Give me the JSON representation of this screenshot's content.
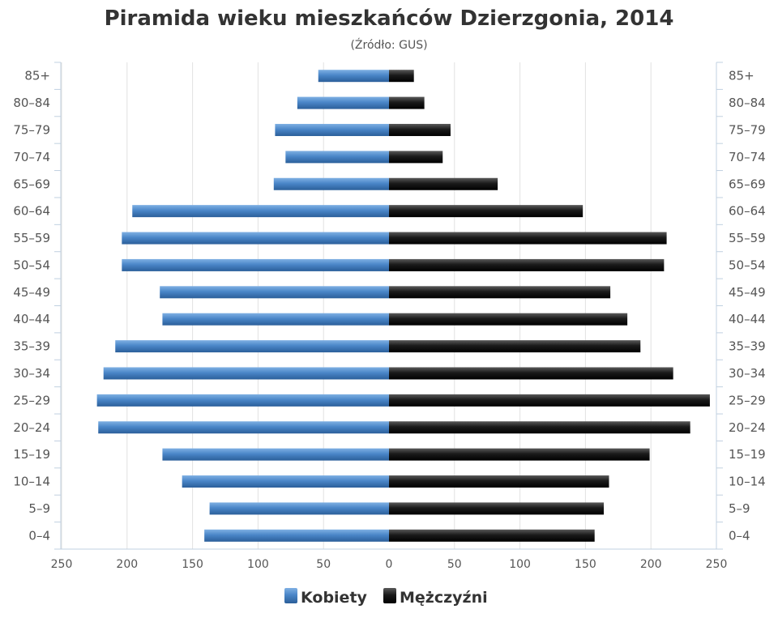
{
  "chart_data": {
    "type": "bar",
    "orientation": "horizontal-population-pyramid",
    "title": "Piramida wieku mieszkańców Dzierzgonia, 2014",
    "subtitle": "(Źródło: GUS)",
    "categories": [
      "0–4",
      "5–9",
      "10–14",
      "15–19",
      "20–24",
      "25–29",
      "30–34",
      "35–39",
      "40–44",
      "45–49",
      "50–54",
      "55–59",
      "60–64",
      "65–69",
      "70–74",
      "75–79",
      "80–84",
      "85+"
    ],
    "series": [
      {
        "name": "Kobiety",
        "color": "#4a86c8",
        "side": "left",
        "values": [
          141,
          137,
          158,
          173,
          222,
          223,
          218,
          209,
          173,
          175,
          204,
          204,
          196,
          88,
          79,
          87,
          70,
          54
        ]
      },
      {
        "name": "Mężczyźni",
        "color": "#1a1a1a",
        "side": "right",
        "values": [
          157,
          164,
          168,
          199,
          230,
          245,
          217,
          192,
          182,
          169,
          210,
          212,
          148,
          83,
          41,
          47,
          27,
          19
        ]
      }
    ],
    "xlim": [
      -250,
      250
    ],
    "x_ticks": [
      {
        "value": -250,
        "label": "250"
      },
      {
        "value": -200,
        "label": "200"
      },
      {
        "value": -150,
        "label": "150"
      },
      {
        "value": -100,
        "label": "100"
      },
      {
        "value": -50,
        "label": "50"
      },
      {
        "value": 0,
        "label": "0"
      },
      {
        "value": 50,
        "label": "50"
      },
      {
        "value": 100,
        "label": "100"
      },
      {
        "value": 150,
        "label": "150"
      },
      {
        "value": 200,
        "label": "200"
      },
      {
        "value": 250,
        "label": "250"
      }
    ],
    "grid": true,
    "legend": "bottom-center"
  }
}
